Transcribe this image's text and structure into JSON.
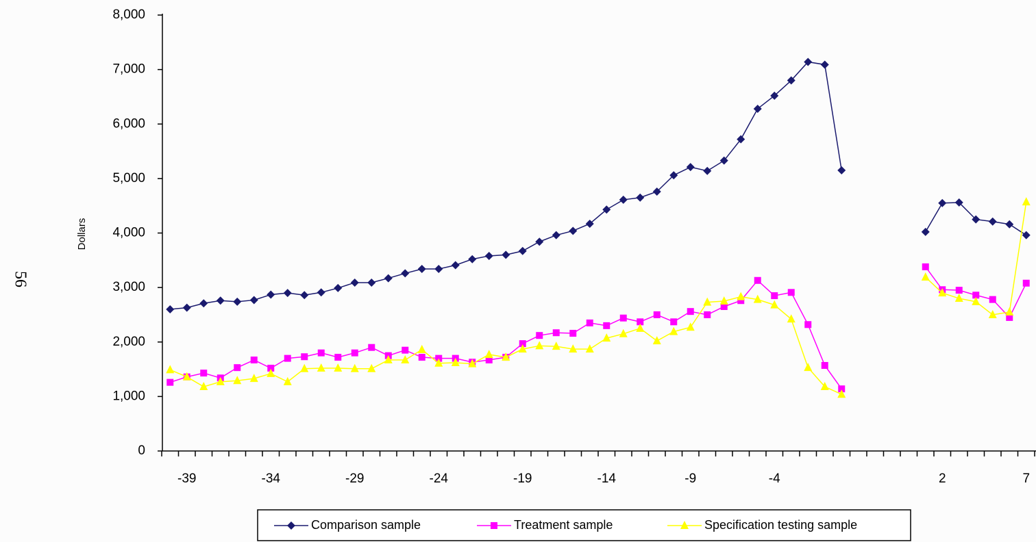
{
  "page_number": "56",
  "chart_data": {
    "type": "line",
    "y_label": "Dollars",
    "categories": [
      null,
      "-39",
      null,
      null,
      null,
      null,
      "-34",
      null,
      null,
      null,
      null,
      "-29",
      null,
      null,
      null,
      null,
      "-24",
      null,
      null,
      null,
      null,
      "-19",
      null,
      null,
      null,
      null,
      "-14",
      null,
      null,
      null,
      null,
      "-9",
      null,
      null,
      null,
      null,
      "-4",
      null,
      null,
      null,
      null,
      null,
      null,
      null,
      null,
      null,
      "2",
      null,
      null,
      null,
      null,
      "7"
    ],
    "ylim": [
      0,
      8000
    ],
    "yticks": [
      0,
      {
        "value": 1000,
        "label": "1,000"
      },
      {
        "value": 2000,
        "label": "2,000"
      },
      {
        "value": 3000,
        "label": "3,000"
      },
      {
        "value": 4000,
        "label": "4,000"
      },
      {
        "value": 5000,
        "label": "5,000"
      },
      {
        "value": 6000,
        "label": "6,000"
      },
      {
        "value": 7000,
        "label": "7,000"
      },
      {
        "value": 8000,
        "label": "8,000"
      }
    ],
    "legend": "bottom",
    "series": [
      {
        "name": "Comparison sample",
        "color": "#1a1a6e",
        "marker": "diamond",
        "values": [
          2600,
          2630,
          2710,
          2760,
          2740,
          2770,
          2870,
          2900,
          2860,
          2910,
          2990,
          3090,
          3090,
          3170,
          3260,
          3340,
          3340,
          3410,
          3520,
          3580,
          3600,
          3670,
          3840,
          3960,
          4040,
          4170,
          4430,
          4610,
          4650,
          4760,
          5060,
          5210,
          5140,
          5330,
          5720,
          6280,
          6520,
          6800,
          7140,
          7090,
          5150,
          null,
          null,
          null,
          null,
          4020,
          4550,
          4560,
          4250,
          4210,
          4160,
          3960
        ]
      },
      {
        "name": "Treatment sample",
        "color": "#ff00ff",
        "marker": "square",
        "values": [
          1260,
          1360,
          1430,
          1340,
          1530,
          1670,
          1520,
          1700,
          1730,
          1800,
          1720,
          1800,
          1900,
          1750,
          1850,
          1720,
          1700,
          1700,
          1630,
          1670,
          1720,
          1970,
          2120,
          2170,
          2160,
          2350,
          2300,
          2440,
          2370,
          2500,
          2370,
          2560,
          2500,
          2650,
          2760,
          3130,
          2850,
          2910,
          2320,
          1570,
          1140,
          null,
          null,
          null,
          null,
          3380,
          2960,
          2950,
          2860,
          2780,
          2450,
          3080
        ]
      },
      {
        "name": "Specification testing sample",
        "color": "#ffff00",
        "marker": "triangle",
        "values": [
          1490,
          1360,
          1180,
          1270,
          1290,
          1330,
          1420,
          1270,
          1510,
          1520,
          1520,
          1510,
          1510,
          1670,
          1670,
          1860,
          1610,
          1620,
          1600,
          1770,
          1720,
          1870,
          1930,
          1920,
          1870,
          1870,
          2070,
          2150,
          2250,
          2020,
          2190,
          2270,
          2730,
          2750,
          2830,
          2780,
          2680,
          2420,
          1530,
          1180,
          1040,
          null,
          null,
          null,
          null,
          3190,
          2900,
          2800,
          2740,
          2500,
          2550,
          4570
        ]
      }
    ]
  }
}
